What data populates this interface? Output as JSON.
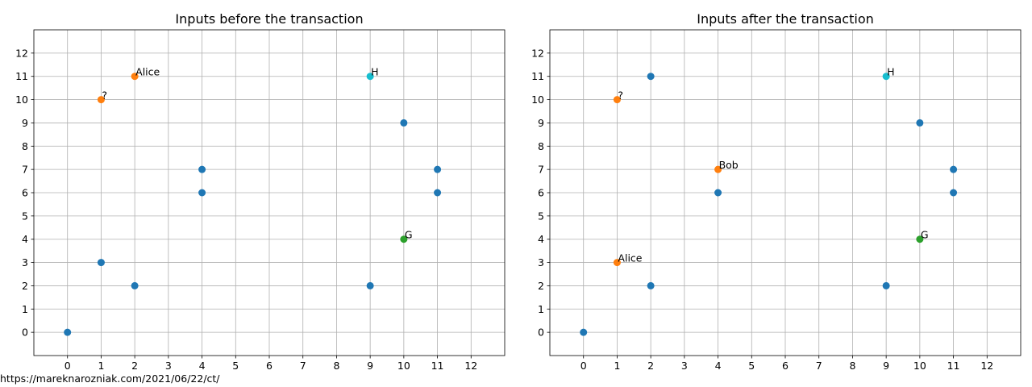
{
  "footer_text": "https://mareknarozniak.com/2021/06/22/ct/",
  "colors": {
    "blue": "#1f77b4",
    "orange": "#ff7f0e",
    "green": "#2ca02c",
    "cyan": "#17becf",
    "grid": "#b0b0b0"
  },
  "chart_data": [
    {
      "type": "scatter",
      "title": "Inputs before the transaction",
      "xlabel": "",
      "ylabel": "",
      "xlim": [
        -1,
        13
      ],
      "ylim": [
        -1,
        13
      ],
      "xticks": [
        0,
        1,
        2,
        3,
        4,
        5,
        6,
        7,
        8,
        9,
        10,
        11,
        12
      ],
      "yticks": [
        0,
        1,
        2,
        3,
        4,
        5,
        6,
        7,
        8,
        9,
        10,
        11,
        12
      ],
      "grid": true,
      "points": [
        {
          "x": 0,
          "y": 0,
          "color": "blue",
          "label": ""
        },
        {
          "x": 1,
          "y": 3,
          "color": "blue",
          "label": ""
        },
        {
          "x": 2,
          "y": 2,
          "color": "blue",
          "label": ""
        },
        {
          "x": 4,
          "y": 6,
          "color": "blue",
          "label": ""
        },
        {
          "x": 4,
          "y": 7,
          "color": "blue",
          "label": ""
        },
        {
          "x": 9,
          "y": 2,
          "color": "blue",
          "label": ""
        },
        {
          "x": 10,
          "y": 9,
          "color": "blue",
          "label": ""
        },
        {
          "x": 11,
          "y": 6,
          "color": "blue",
          "label": ""
        },
        {
          "x": 11,
          "y": 7,
          "color": "blue",
          "label": ""
        },
        {
          "x": 1,
          "y": 10,
          "color": "orange",
          "label": "?"
        },
        {
          "x": 2,
          "y": 11,
          "color": "orange",
          "label": "Alice"
        },
        {
          "x": 9,
          "y": 11,
          "color": "cyan",
          "label": "H"
        },
        {
          "x": 10,
          "y": 4,
          "color": "green",
          "label": "G"
        }
      ]
    },
    {
      "type": "scatter",
      "title": "Inputs after the transaction",
      "xlabel": "",
      "ylabel": "",
      "xlim": [
        -1,
        13
      ],
      "ylim": [
        -1,
        13
      ],
      "xticks": [
        0,
        1,
        2,
        3,
        4,
        5,
        6,
        7,
        8,
        9,
        10,
        11,
        12
      ],
      "yticks": [
        0,
        1,
        2,
        3,
        4,
        5,
        6,
        7,
        8,
        9,
        10,
        11,
        12
      ],
      "grid": true,
      "points": [
        {
          "x": 0,
          "y": 0,
          "color": "blue",
          "label": ""
        },
        {
          "x": 2,
          "y": 2,
          "color": "blue",
          "label": ""
        },
        {
          "x": 2,
          "y": 11,
          "color": "blue",
          "label": ""
        },
        {
          "x": 4,
          "y": 6,
          "color": "blue",
          "label": ""
        },
        {
          "x": 9,
          "y": 2,
          "color": "blue",
          "label": ""
        },
        {
          "x": 10,
          "y": 9,
          "color": "blue",
          "label": ""
        },
        {
          "x": 11,
          "y": 6,
          "color": "blue",
          "label": ""
        },
        {
          "x": 11,
          "y": 7,
          "color": "blue",
          "label": ""
        },
        {
          "x": 1,
          "y": 10,
          "color": "orange",
          "label": "?"
        },
        {
          "x": 1,
          "y": 3,
          "color": "orange",
          "label": "Alice"
        },
        {
          "x": 4,
          "y": 7,
          "color": "orange",
          "label": "Bob"
        },
        {
          "x": 9,
          "y": 11,
          "color": "cyan",
          "label": "H"
        },
        {
          "x": 10,
          "y": 4,
          "color": "green",
          "label": "G"
        }
      ]
    }
  ]
}
